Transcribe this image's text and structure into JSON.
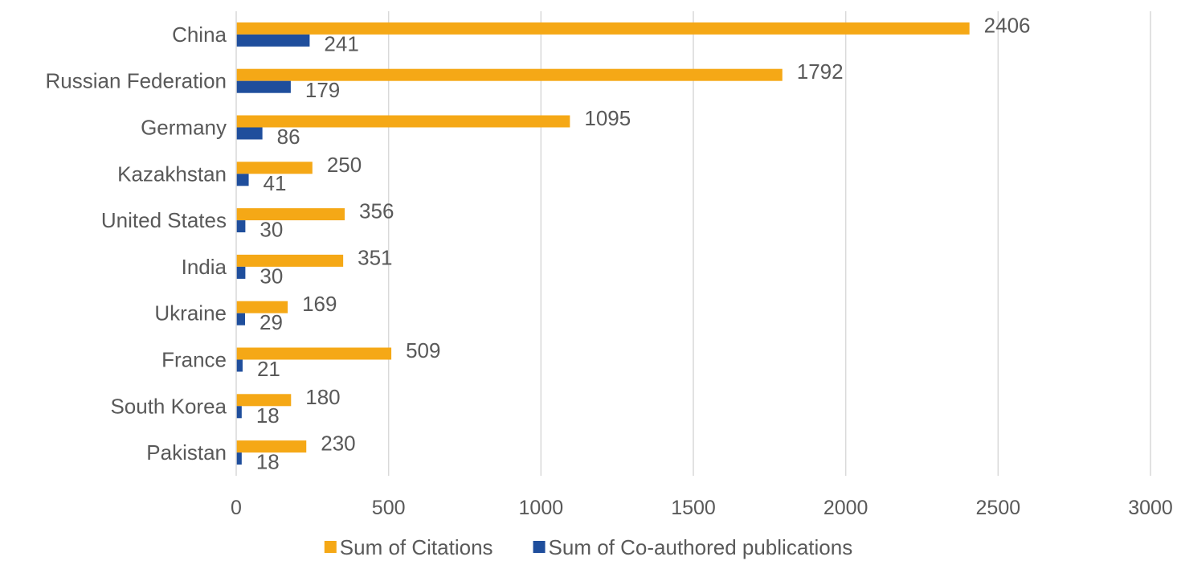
{
  "chart_data": {
    "type": "bar",
    "orientation": "horizontal",
    "categories": [
      "China",
      "Russian Federation",
      "Germany",
      "Kazakhstan",
      "United States",
      "India",
      "Ukraine",
      "France",
      "South Korea",
      "Pakistan"
    ],
    "series": [
      {
        "name": "Sum of Citations",
        "color": "#F5A816",
        "values": [
          2406,
          1792,
          1095,
          250,
          356,
          351,
          169,
          509,
          180,
          230
        ]
      },
      {
        "name": "Sum of Co-authored publications",
        "color": "#1F4E9C",
        "values": [
          241,
          179,
          86,
          41,
          30,
          30,
          29,
          21,
          18,
          18
        ]
      }
    ],
    "title": "",
    "xlabel": "",
    "ylabel": "",
    "xlim": [
      0,
      3000
    ],
    "x_ticks": [
      "0",
      "500",
      "1000",
      "1500",
      "2000",
      "2500",
      "3000"
    ],
    "grid": "vertical",
    "legend_position": "bottom",
    "data_labels": true
  }
}
